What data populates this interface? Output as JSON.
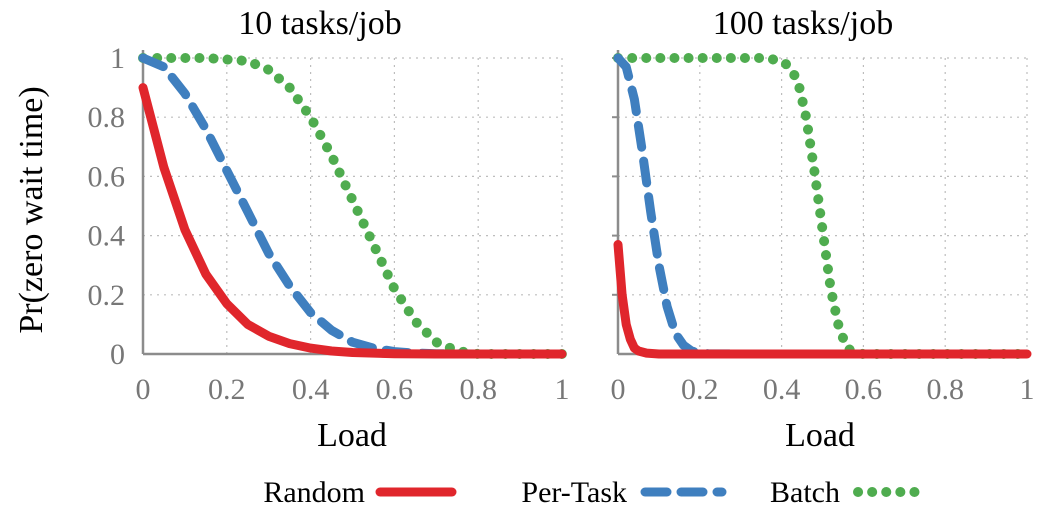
{
  "chart_data": {
    "type": "line",
    "ylabel": "Pr(zero wait time)",
    "series_styles": [
      {
        "name": "Random",
        "color": "#e0262c",
        "style": "solid"
      },
      {
        "name": "Per-Task",
        "color": "#3f7fbf",
        "style": "dashed"
      },
      {
        "name": "Batch",
        "color": "#4fac4f",
        "style": "dotted"
      }
    ],
    "legend": {
      "position": "bottom-center",
      "entries": [
        "Random",
        "Per-Task",
        "Batch"
      ]
    },
    "panels": [
      {
        "title": "10 tasks/job",
        "xlabel": "Load",
        "xlim": [
          0,
          1
        ],
        "ylim": [
          0,
          1
        ],
        "xticks": [
          "0",
          "0.2",
          "0.4",
          "0.6",
          "0.8",
          "1"
        ],
        "yticks": [
          "0",
          "0.2",
          "0.4",
          "0.6",
          "0.8",
          "1"
        ],
        "series": [
          {
            "name": "Random",
            "x": [
              0,
              0.05,
              0.1,
              0.15,
              0.2,
              0.25,
              0.3,
              0.35,
              0.4,
              0.45,
              0.5,
              0.6,
              0.7,
              0.8,
              0.9,
              1.0
            ],
            "y": [
              0.9,
              0.63,
              0.42,
              0.27,
              0.17,
              0.1,
              0.06,
              0.035,
              0.02,
              0.01,
              0.005,
              0.001,
              0,
              0,
              0,
              0
            ]
          },
          {
            "name": "Per-Task",
            "x": [
              0,
              0.05,
              0.1,
              0.15,
              0.2,
              0.25,
              0.3,
              0.35,
              0.4,
              0.45,
              0.5,
              0.55,
              0.6,
              0.65,
              0.7,
              0.8,
              0.9,
              1.0
            ],
            "y": [
              1.0,
              0.97,
              0.88,
              0.76,
              0.62,
              0.48,
              0.34,
              0.23,
              0.14,
              0.08,
              0.04,
              0.02,
              0.008,
              0.003,
              0.001,
              0,
              0,
              0
            ]
          },
          {
            "name": "Batch",
            "x": [
              0,
              0.05,
              0.1,
              0.15,
              0.2,
              0.25,
              0.3,
              0.35,
              0.4,
              0.45,
              0.5,
              0.55,
              0.6,
              0.65,
              0.7,
              0.75,
              0.8,
              0.9,
              1.0
            ],
            "y": [
              1.0,
              1.0,
              1.0,
              1.0,
              0.995,
              0.99,
              0.96,
              0.9,
              0.8,
              0.67,
              0.52,
              0.37,
              0.22,
              0.11,
              0.04,
              0.01,
              0,
              0,
              0
            ]
          }
        ]
      },
      {
        "title": "100 tasks/job",
        "xlabel": "Load",
        "xlim": [
          0,
          1
        ],
        "ylim": [
          0,
          1
        ],
        "xticks": [
          "0",
          "0.2",
          "0.4",
          "0.6",
          "0.8",
          "1"
        ],
        "yticks": [
          "0",
          "0.2",
          "0.4",
          "0.6",
          "0.8",
          "1"
        ],
        "series": [
          {
            "name": "Random",
            "x": [
              0,
              0.01,
              0.02,
              0.03,
              0.04,
              0.05,
              0.07,
              0.1,
              0.2,
              0.4,
              0.6,
              0.8,
              1.0
            ],
            "y": [
              0.37,
              0.2,
              0.1,
              0.05,
              0.02,
              0.01,
              0.003,
              0,
              0,
              0,
              0,
              0,
              0
            ]
          },
          {
            "name": "Per-Task",
            "x": [
              0,
              0.02,
              0.04,
              0.06,
              0.08,
              0.1,
              0.12,
              0.14,
              0.16,
              0.18,
              0.2,
              0.22,
              0.3,
              0.5,
              0.7,
              1.0
            ],
            "y": [
              1.0,
              0.97,
              0.86,
              0.68,
              0.48,
              0.3,
              0.16,
              0.07,
              0.03,
              0.01,
              0.004,
              0.001,
              0,
              0,
              0,
              0
            ]
          },
          {
            "name": "Batch",
            "x": [
              0,
              0.1,
              0.2,
              0.3,
              0.36,
              0.4,
              0.42,
              0.44,
              0.46,
              0.48,
              0.5,
              0.52,
              0.54,
              0.56,
              0.58,
              0.6,
              0.7,
              0.8,
              1.0
            ],
            "y": [
              1.0,
              1.0,
              1.0,
              1.0,
              1.0,
              0.99,
              0.97,
              0.92,
              0.8,
              0.62,
              0.42,
              0.22,
              0.09,
              0.02,
              0.004,
              0,
              0,
              0,
              0
            ]
          }
        ]
      }
    ]
  }
}
